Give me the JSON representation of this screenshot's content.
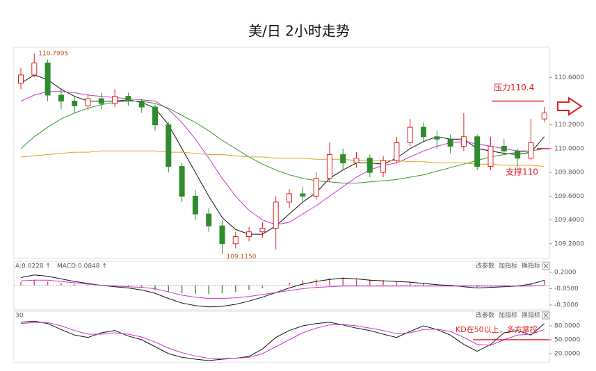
{
  "chart_data": [
    {
      "type": "candlestick",
      "title": "美/日 2小时走势",
      "open": [
        110.55,
        110.62,
        110.72,
        110.45,
        110.4,
        110.36,
        110.42,
        110.38,
        110.44,
        110.4,
        110.35,
        110.2,
        109.85,
        109.6,
        109.45,
        109.35,
        109.2,
        109.26,
        109.3,
        109.33,
        109.55,
        109.62,
        109.6,
        109.75,
        109.95,
        109.88,
        109.92,
        109.8,
        109.9,
        110.05,
        110.18,
        110.1,
        110.08,
        110.02,
        110.1,
        109.85,
        110.02,
        109.98,
        109.92,
        110.25
      ],
      "close": [
        110.62,
        110.72,
        110.45,
        110.4,
        110.36,
        110.42,
        110.38,
        110.44,
        110.4,
        110.35,
        110.2,
        109.85,
        109.6,
        109.45,
        109.35,
        109.2,
        109.26,
        109.3,
        109.33,
        109.55,
        109.62,
        109.6,
        109.75,
        109.95,
        109.88,
        109.92,
        109.8,
        109.9,
        110.05,
        110.18,
        110.1,
        110.08,
        110.02,
        110.1,
        109.85,
        110.02,
        109.98,
        109.92,
        110.05,
        110.3
      ],
      "high": [
        110.68,
        110.7995,
        110.75,
        110.5,
        110.44,
        110.46,
        110.47,
        110.5,
        110.47,
        110.42,
        110.37,
        110.22,
        109.88,
        109.65,
        109.5,
        109.4,
        109.3,
        109.34,
        109.38,
        109.6,
        109.66,
        109.68,
        109.8,
        110.05,
        110.0,
        109.97,
        109.95,
        109.94,
        110.1,
        110.25,
        110.22,
        110.15,
        110.12,
        110.3,
        110.12,
        110.1,
        110.08,
        110.0,
        110.25,
        110.35
      ],
      "low": [
        110.5,
        110.6,
        110.4,
        110.33,
        110.3,
        110.32,
        110.33,
        110.35,
        110.36,
        110.3,
        110.15,
        109.8,
        109.55,
        109.4,
        109.3,
        109.115,
        109.16,
        109.22,
        109.25,
        109.15,
        109.5,
        109.55,
        109.57,
        109.72,
        109.82,
        109.84,
        109.76,
        109.76,
        109.88,
        110.02,
        110.05,
        110.0,
        109.96,
        109.98,
        109.82,
        109.82,
        109.95,
        109.85,
        109.9,
        110.22
      ],
      "up_color": "#e02020",
      "down_color": "#2e8b2e",
      "lines": [
        {
          "color": "#111111",
          "values": [
            110.55,
            110.62,
            110.58,
            110.5,
            110.44,
            110.4,
            110.4,
            110.4,
            110.41,
            110.39,
            110.34,
            110.2,
            110.0,
            109.8,
            109.6,
            109.42,
            109.32,
            109.28,
            109.28,
            109.35,
            109.45,
            109.55,
            109.63,
            109.75,
            109.82,
            109.88,
            109.88,
            109.87,
            109.92,
            110.0,
            110.06,
            110.1,
            110.08,
            110.08,
            110.0,
            109.98,
            109.96,
            109.95,
            109.97,
            110.1
          ]
        },
        {
          "color": "#cc33cc",
          "values": [
            110.4,
            110.45,
            110.48,
            110.48,
            110.47,
            110.45,
            110.44,
            110.43,
            110.42,
            110.41,
            110.4,
            110.33,
            110.22,
            110.08,
            109.92,
            109.75,
            109.6,
            109.48,
            109.4,
            109.36,
            109.38,
            109.45,
            109.52,
            109.6,
            109.68,
            109.76,
            109.82,
            109.86,
            109.88,
            109.93,
            109.98,
            110.02,
            110.05,
            110.06,
            110.04,
            110.02,
            110.0,
            109.98,
            109.98,
            110.0
          ]
        },
        {
          "color": "#2f9a2f",
          "values": [
            110.0,
            110.1,
            110.18,
            110.25,
            110.3,
            110.34,
            110.37,
            110.39,
            110.4,
            110.4,
            110.38,
            110.34,
            110.28,
            110.22,
            110.15,
            110.07,
            110.0,
            109.93,
            109.87,
            109.82,
            109.78,
            109.75,
            109.73,
            109.72,
            109.71,
            109.71,
            109.72,
            109.73,
            109.74,
            109.76,
            109.78,
            109.81,
            109.84,
            109.87,
            109.9,
            109.93,
            109.95,
            109.97,
            109.98,
            110.0
          ]
        },
        {
          "color": "#e0a020",
          "values": [
            109.93,
            109.94,
            109.95,
            109.96,
            109.97,
            109.97,
            109.98,
            109.98,
            109.98,
            109.98,
            109.98,
            109.97,
            109.97,
            109.96,
            109.95,
            109.95,
            109.94,
            109.93,
            109.93,
            109.92,
            109.92,
            109.92,
            109.91,
            109.91,
            109.91,
            109.9,
            109.9,
            109.9,
            109.9,
            109.89,
            109.89,
            109.88,
            109.88,
            109.88,
            109.87,
            109.87,
            109.86,
            109.86,
            109.86,
            109.85
          ]
        }
      ],
      "ylim": [
        109.076,
        110.853
      ],
      "yticks": [
        {
          "value": 109.2,
          "label": "109.2000"
        },
        {
          "value": 109.4,
          "label": "109.4000"
        },
        {
          "value": 109.6,
          "label": "109.6000"
        },
        {
          "value": 109.8,
          "label": "109.8000"
        },
        {
          "value": 110.0,
          "label": "110.0000"
        },
        {
          "value": 110.2,
          "label": "110.2000"
        },
        {
          "value": 110.6,
          "label": "110.6000"
        }
      ],
      "max_label": "110.7995",
      "min_label": "109.1150",
      "resistance": 110.4,
      "resistance_label": "压力110.4",
      "support": 110.0,
      "support_label": "支撑110",
      "level_color": "#e02020"
    },
    {
      "type": "macd",
      "legend": [
        "A:0.0228 ↑",
        "MACD:0.0848 ↑"
      ],
      "toolbar": [
        "改参数",
        "加指标",
        "换指标"
      ],
      "hist": [
        0.05,
        0.08,
        0.06,
        0.04,
        0.02,
        0.01,
        0.0,
        -0.01,
        -0.02,
        -0.04,
        -0.07,
        -0.1,
        -0.12,
        -0.13,
        -0.13,
        -0.12,
        -0.1,
        -0.07,
        -0.04,
        0.0,
        0.04,
        0.07,
        0.09,
        0.11,
        0.12,
        0.11,
        0.09,
        0.08,
        0.07,
        0.06,
        0.04,
        0.02,
        0.01,
        -0.01,
        -0.03,
        -0.02,
        -0.01,
        0.0,
        0.03,
        0.08
      ],
      "lines": [
        {
          "color": "#111111",
          "values": [
            0.12,
            0.16,
            0.14,
            0.1,
            0.06,
            0.03,
            0.0,
            -0.02,
            -0.04,
            -0.07,
            -0.12,
            -0.2,
            -0.27,
            -0.31,
            -0.33,
            -0.32,
            -0.29,
            -0.24,
            -0.18,
            -0.11,
            -0.04,
            0.02,
            0.06,
            0.09,
            0.11,
            0.1,
            0.08,
            0.07,
            0.06,
            0.05,
            0.03,
            0.01,
            0.0,
            -0.02,
            -0.04,
            -0.03,
            -0.02,
            -0.01,
            0.02,
            0.08
          ]
        },
        {
          "color": "#cc33cc",
          "values": [
            0.07,
            0.08,
            0.08,
            0.06,
            0.04,
            0.02,
            0.0,
            -0.01,
            -0.02,
            -0.03,
            -0.05,
            -0.1,
            -0.15,
            -0.18,
            -0.2,
            -0.2,
            -0.19,
            -0.17,
            -0.14,
            -0.11,
            -0.08,
            -0.05,
            -0.03,
            -0.02,
            -0.01,
            -0.01,
            -0.01,
            -0.01,
            -0.01,
            -0.01,
            -0.01,
            -0.01,
            -0.01,
            -0.01,
            -0.01,
            -0.01,
            -0.01,
            -0.01,
            -0.01,
            0.0
          ]
        }
      ],
      "ylim": [
        -0.364,
        0.306
      ],
      "yticks": [
        {
          "value": 0.2,
          "label": "0.2000"
        },
        {
          "value": -0.05,
          "label": "-0.0500"
        },
        {
          "value": -0.3,
          "label": "-0.3000"
        }
      ]
    },
    {
      "type": "kd",
      "legend": [
        "30"
      ],
      "toolbar": [
        "改参数",
        "加指标",
        "换指标"
      ],
      "lines": [
        {
          "color": "#111111",
          "values": [
            88,
            90,
            85,
            72,
            60,
            55,
            65,
            70,
            58,
            50,
            35,
            20,
            12,
            8,
            5,
            8,
            10,
            14,
            30,
            55,
            70,
            80,
            85,
            88,
            82,
            75,
            70,
            62,
            55,
            68,
            80,
            72,
            60,
            40,
            25,
            40,
            65,
            70,
            60,
            85
          ]
        },
        {
          "color": "#cc33cc",
          "values": [
            85,
            87,
            87,
            80,
            70,
            62,
            62,
            65,
            62,
            56,
            45,
            32,
            22,
            15,
            10,
            9,
            10,
            12,
            20,
            35,
            50,
            65,
            75,
            82,
            83,
            80,
            75,
            70,
            63,
            65,
            72,
            73,
            68,
            55,
            40,
            38,
            50,
            60,
            62,
            72
          ]
        }
      ],
      "ylim": [
        3.5,
        96.5
      ],
      "yticks": [
        {
          "value": 80,
          "label": "80.0000"
        },
        {
          "value": 50,
          "label": "50.0000"
        },
        {
          "value": 20,
          "label": "20.0000"
        }
      ],
      "level": 50,
      "level_label": "KD在50以上，多方掌控",
      "level_color": "#e02020"
    }
  ]
}
